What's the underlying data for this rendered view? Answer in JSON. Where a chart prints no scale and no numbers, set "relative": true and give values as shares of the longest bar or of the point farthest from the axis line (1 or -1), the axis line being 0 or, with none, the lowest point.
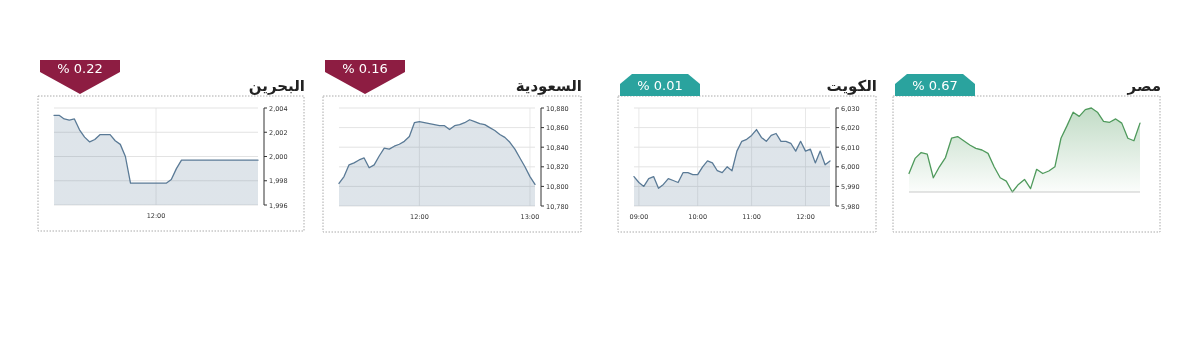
{
  "chart_data": [
    {
      "type": "area",
      "title": "البحرين",
      "annotations": [
        "% 0.22"
      ],
      "grid": true,
      "ylim": [
        1996,
        2004
      ],
      "yticks": [
        {
          "value": 2004,
          "label": "2,004"
        },
        {
          "value": 2002,
          "label": "2,002"
        },
        {
          "value": 2000,
          "label": "2,000"
        },
        {
          "value": 1998,
          "label": "1,998"
        },
        {
          "value": 1996,
          "label": "1,996"
        }
      ],
      "categories": [
        null,
        null,
        null,
        null,
        null,
        null,
        null,
        null,
        null,
        null,
        null,
        null,
        null,
        null,
        null,
        null,
        null,
        null,
        null,
        null,
        "12:00",
        null,
        null,
        null,
        null,
        null,
        null,
        null,
        null,
        null,
        null,
        null,
        null,
        null,
        null,
        null,
        null,
        null,
        null,
        null,
        null
      ],
      "series": [
        {
          "color": "#5a7a96",
          "values": [
            2003.4,
            2003.4,
            2003.1,
            2003.0,
            2003.1,
            2002.2,
            2001.6,
            2001.2,
            2001.4,
            2001.8,
            2001.8,
            2001.8,
            2001.3,
            2001.0,
            2000.0,
            1997.8,
            1997.8,
            1997.8,
            1997.8,
            1997.8,
            1997.8,
            1997.8,
            1997.8,
            1998.1,
            1999.0,
            1999.7,
            1999.7,
            1999.7,
            1999.7,
            1999.7,
            1999.7,
            1999.7,
            1999.7,
            1999.7,
            1999.7,
            1999.7,
            1999.7,
            1999.7,
            1999.7,
            1999.7,
            1999.7
          ]
        }
      ]
    },
    {
      "type": "area",
      "title": "السعودية",
      "annotations": [
        "% 0.16"
      ],
      "grid": true,
      "ylim": [
        10780,
        10880
      ],
      "yticks": [
        {
          "value": 10880,
          "label": "10,880"
        },
        {
          "value": 10860,
          "label": "10,860"
        },
        {
          "value": 10840,
          "label": "10,840"
        },
        {
          "value": 10820,
          "label": "10,820"
        },
        {
          "value": 10800,
          "label": "10,800"
        },
        {
          "value": 10780,
          "label": "10,780"
        }
      ],
      "categories": [
        null,
        null,
        null,
        null,
        null,
        null,
        null,
        null,
        null,
        null,
        null,
        null,
        null,
        null,
        null,
        null,
        "12:00",
        null,
        null,
        null,
        null,
        null,
        null,
        null,
        null,
        null,
        null,
        null,
        null,
        null,
        null,
        null,
        null,
        null,
        null,
        null,
        null,
        null,
        "13:00",
        null
      ],
      "series": [
        {
          "color": "#5a7a96",
          "values": [
            10803,
            10810,
            10822,
            10824,
            10827,
            10829,
            10819,
            10822,
            10831,
            10839,
            10838,
            10841,
            10843,
            10846,
            10851,
            10865,
            10866,
            10865,
            10864,
            10863,
            10862,
            10862,
            10858,
            10862,
            10863,
            10865,
            10868,
            10866,
            10864,
            10863,
            10860,
            10857,
            10853,
            10850,
            10845,
            10838,
            10829,
            10820,
            10810,
            10802
          ]
        }
      ]
    },
    {
      "type": "area",
      "title": "الكويت",
      "annotations": [
        "% 0.01"
      ],
      "grid": true,
      "ylim": [
        5980,
        6030
      ],
      "yticks": [
        {
          "value": 6030,
          "label": "6,030"
        },
        {
          "value": 6020,
          "label": "6,020"
        },
        {
          "value": 6010,
          "label": "6,010"
        },
        {
          "value": 6000,
          "label": "6,000"
        },
        {
          "value": 5990,
          "label": "5,990"
        },
        {
          "value": 5980,
          "label": "5,980"
        }
      ],
      "categories": [
        null,
        "09:00",
        null,
        null,
        null,
        null,
        null,
        null,
        null,
        null,
        null,
        null,
        null,
        "10:00",
        null,
        null,
        null,
        null,
        null,
        null,
        null,
        null,
        null,
        null,
        "11:00",
        null,
        null,
        null,
        null,
        null,
        null,
        null,
        null,
        null,
        null,
        "12:00",
        null,
        null,
        null,
        null,
        null
      ],
      "series": [
        {
          "color": "#5a7a96",
          "values": [
            5995,
            5992,
            5990,
            5994,
            5995,
            5989,
            5991,
            5994,
            5993,
            5992,
            5997,
            5997,
            5996,
            5996,
            6000,
            6003,
            6002,
            5998,
            5997,
            6000,
            5998,
            6008,
            6013,
            6014,
            6016,
            6019,
            6015,
            6013,
            6016,
            6017,
            6013,
            6013,
            6012,
            6008,
            6013,
            6008,
            6009,
            6002,
            6008,
            6001,
            6003
          ]
        }
      ]
    },
    {
      "type": "area",
      "title": "مصر",
      "annotations": [
        "% 0.67"
      ],
      "relative": true,
      "categories": [
        null,
        null,
        null,
        null,
        null,
        null,
        null,
        null,
        null,
        null,
        null,
        null,
        null,
        null,
        null,
        null,
        null,
        null,
        null,
        null,
        null,
        null,
        null,
        null,
        null,
        null,
        null,
        null,
        null,
        null,
        null,
        null,
        null,
        null,
        null,
        null,
        null,
        null,
        null
      ],
      "series": [
        {
          "color": "#4f9a5c",
          "values": [
            0.22,
            0.4,
            0.47,
            0.45,
            0.17,
            0.3,
            0.41,
            0.64,
            0.66,
            0.61,
            0.56,
            0.52,
            0.5,
            0.46,
            0.3,
            0.17,
            0.13,
            0.0,
            0.09,
            0.15,
            0.04,
            0.27,
            0.22,
            0.25,
            0.3,
            0.64,
            0.79,
            0.95,
            0.9,
            0.98,
            1.0,
            0.95,
            0.84,
            0.83,
            0.87,
            0.82,
            0.64,
            0.61,
            0.82
          ]
        }
      ]
    }
  ]
}
